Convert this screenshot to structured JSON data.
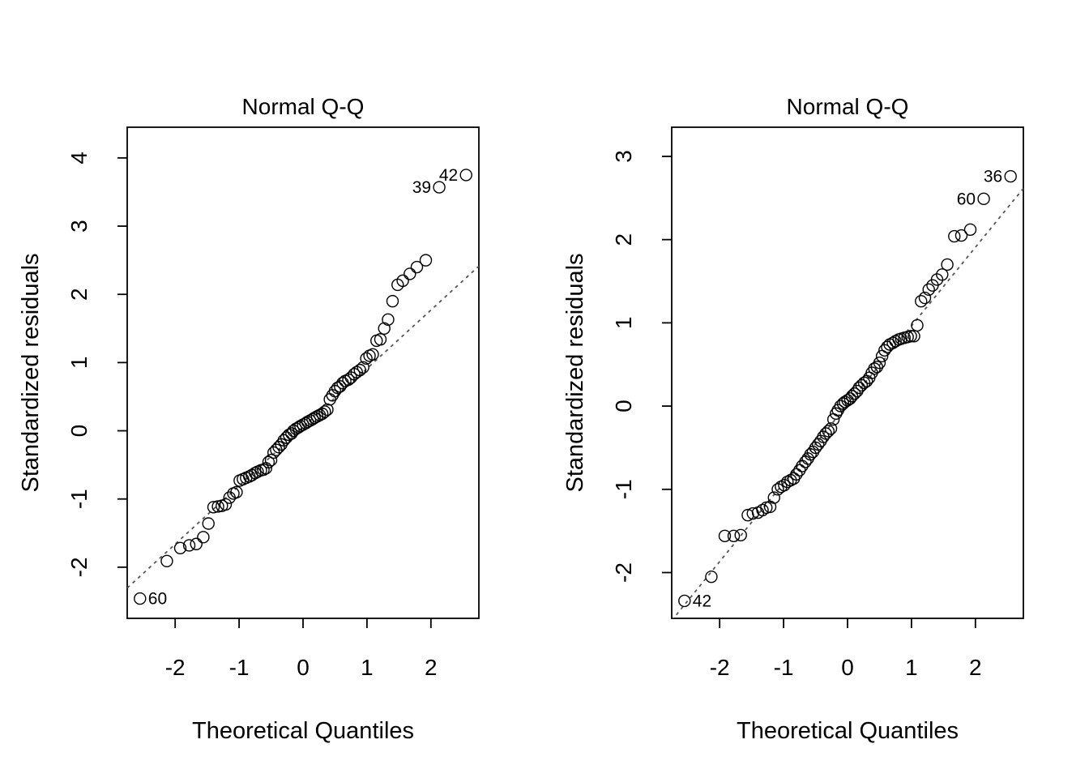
{
  "chart_data": [
    {
      "type": "scatter",
      "title": "Normal Q-Q",
      "xlabel": "Theoretical Quantiles",
      "ylabel": "Standardized residuals",
      "xlim": [
        -2.75,
        2.75
      ],
      "ylim": [
        -2.75,
        4.45
      ],
      "xticks": [
        -2,
        -1,
        0,
        1,
        2
      ],
      "yticks": [
        -2,
        -1,
        0,
        1,
        2,
        3,
        4
      ],
      "grid": false,
      "legend": "none",
      "reference_line": {
        "style": "dotted",
        "color": "#555555",
        "intercept": 0.054,
        "slope": 0.858
      },
      "labeled_points": [
        {
          "label": "42",
          "x": 2.55,
          "y": 3.75,
          "side": "left"
        },
        {
          "label": "39",
          "x": 2.13,
          "y": 3.57,
          "side": "left"
        },
        {
          "label": "60",
          "x": -2.55,
          "y": -2.46,
          "side": "right"
        }
      ],
      "x": [
        -2.13,
        -1.92,
        -1.78,
        -1.67,
        -1.56,
        -1.48,
        -1.4,
        -1.33,
        -1.27,
        -1.21,
        -1.15,
        -1.09,
        -1.04,
        -0.99,
        -0.94,
        -0.89,
        -0.84,
        -0.8,
        -0.75,
        -0.71,
        -0.66,
        -0.62,
        -0.58,
        -0.54,
        -0.5,
        -0.46,
        -0.42,
        -0.38,
        -0.34,
        -0.3,
        -0.26,
        -0.22,
        -0.18,
        -0.15,
        -0.11,
        -0.07,
        -0.04,
        0.0,
        0.04,
        0.07,
        0.11,
        0.15,
        0.18,
        0.22,
        0.26,
        0.3,
        0.34,
        0.38,
        0.42,
        0.46,
        0.5,
        0.54,
        0.58,
        0.62,
        0.66,
        0.71,
        0.75,
        0.8,
        0.84,
        0.89,
        0.94,
        0.99,
        1.04,
        1.09,
        1.15,
        1.21,
        1.27,
        1.33,
        1.4,
        1.48,
        1.56,
        1.67,
        1.78,
        1.92
      ],
      "y": [
        -1.91,
        -1.72,
        -1.68,
        -1.66,
        -1.56,
        -1.36,
        -1.12,
        -1.11,
        -1.1,
        -1.08,
        -0.98,
        -0.92,
        -0.9,
        -0.73,
        -0.71,
        -0.69,
        -0.67,
        -0.65,
        -0.62,
        -0.6,
        -0.58,
        -0.57,
        -0.55,
        -0.46,
        -0.43,
        -0.32,
        -0.28,
        -0.24,
        -0.2,
        -0.14,
        -0.1,
        -0.06,
        -0.04,
        0.0,
        0.03,
        0.05,
        0.07,
        0.09,
        0.11,
        0.13,
        0.15,
        0.17,
        0.19,
        0.21,
        0.23,
        0.25,
        0.28,
        0.31,
        0.46,
        0.52,
        0.58,
        0.63,
        0.65,
        0.7,
        0.73,
        0.75,
        0.78,
        0.83,
        0.86,
        0.89,
        0.93,
        1.06,
        1.1,
        1.12,
        1.32,
        1.34,
        1.5,
        1.63,
        1.9,
        2.14,
        2.2,
        2.3,
        2.4,
        2.5
      ]
    },
    {
      "type": "scatter",
      "title": "Normal Q-Q",
      "xlabel": "Theoretical Quantiles",
      "ylabel": "Standardized residuals",
      "xlim": [
        -2.75,
        2.75
      ],
      "ylim": [
        -2.55,
        3.35
      ],
      "xticks": [
        -2,
        -1,
        0,
        1,
        2
      ],
      "yticks": [
        -2,
        -1,
        0,
        1,
        2,
        3
      ],
      "grid": false,
      "legend": "none",
      "reference_line": {
        "style": "dotted",
        "color": "#555555",
        "intercept": 0.02,
        "slope": 0.944
      },
      "labeled_points": [
        {
          "label": "36",
          "x": 2.55,
          "y": 2.76,
          "side": "left"
        },
        {
          "label": "60",
          "x": 2.13,
          "y": 2.49,
          "side": "left"
        },
        {
          "label": "42",
          "x": -2.55,
          "y": -2.34,
          "side": "right"
        }
      ],
      "x": [
        -2.13,
        -1.92,
        -1.78,
        -1.67,
        -1.56,
        -1.48,
        -1.4,
        -1.33,
        -1.27,
        -1.21,
        -1.15,
        -1.09,
        -1.04,
        -0.99,
        -0.94,
        -0.89,
        -0.84,
        -0.8,
        -0.75,
        -0.71,
        -0.66,
        -0.62,
        -0.58,
        -0.54,
        -0.5,
        -0.46,
        -0.42,
        -0.38,
        -0.34,
        -0.3,
        -0.26,
        -0.22,
        -0.18,
        -0.15,
        -0.11,
        -0.07,
        -0.04,
        0.0,
        0.04,
        0.07,
        0.11,
        0.15,
        0.18,
        0.22,
        0.26,
        0.3,
        0.34,
        0.38,
        0.42,
        0.46,
        0.5,
        0.54,
        0.58,
        0.62,
        0.66,
        0.71,
        0.75,
        0.8,
        0.84,
        0.89,
        0.94,
        0.99,
        1.04,
        1.09,
        1.15,
        1.21,
        1.27,
        1.33,
        1.4,
        1.48,
        1.56,
        1.67,
        1.78,
        1.92
      ],
      "y": [
        -2.05,
        -1.56,
        -1.56,
        -1.55,
        -1.31,
        -1.29,
        -1.28,
        -1.25,
        -1.22,
        -1.21,
        -1.1,
        -1.0,
        -0.97,
        -0.95,
        -0.91,
        -0.89,
        -0.87,
        -0.82,
        -0.77,
        -0.72,
        -0.67,
        -0.63,
        -0.58,
        -0.55,
        -0.5,
        -0.46,
        -0.42,
        -0.37,
        -0.33,
        -0.3,
        -0.27,
        -0.16,
        -0.09,
        -0.05,
        0.0,
        0.03,
        0.05,
        0.07,
        0.09,
        0.12,
        0.15,
        0.18,
        0.22,
        0.25,
        0.28,
        0.3,
        0.34,
        0.4,
        0.45,
        0.47,
        0.52,
        0.6,
        0.67,
        0.71,
        0.74,
        0.76,
        0.78,
        0.8,
        0.81,
        0.82,
        0.83,
        0.84,
        0.84,
        0.97,
        1.26,
        1.3,
        1.4,
        1.45,
        1.52,
        1.58,
        1.7,
        2.04,
        2.05,
        2.12
      ]
    }
  ]
}
